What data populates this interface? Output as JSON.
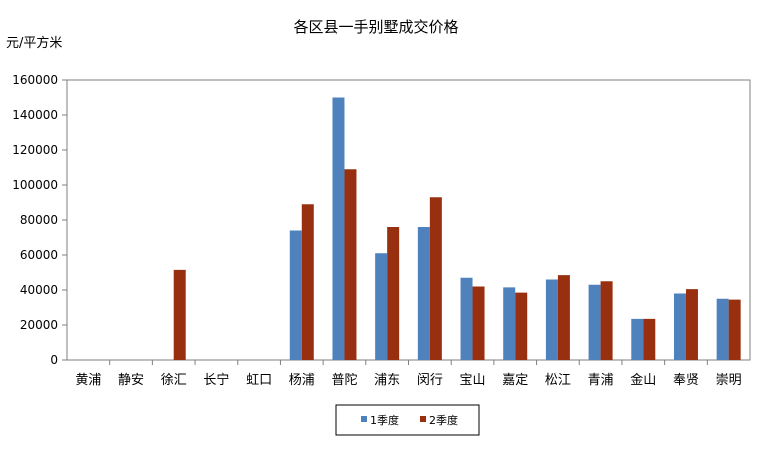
{
  "chart_data": {
    "type": "bar",
    "title": "各区县一手别墅成交价格",
    "ylabel": "元/平方米",
    "xlabel": "",
    "ylim": [
      0,
      160000
    ],
    "yticks": [
      0,
      20000,
      40000,
      60000,
      80000,
      100000,
      120000,
      140000,
      160000
    ],
    "grid": false,
    "legend_position": "bottom",
    "categories": [
      "黄浦",
      "静安",
      "徐汇",
      "长宁",
      "虹口",
      "杨浦",
      "普陀",
      "浦东",
      "闵行",
      "宝山",
      "嘉定",
      "松江",
      "青浦",
      "金山",
      "奉贤",
      "崇明"
    ],
    "series": [
      {
        "name": "1季度",
        "color": "#4F81BD",
        "values": [
          0,
          0,
          0,
          0,
          0,
          74000,
          150000,
          61000,
          76000,
          47000,
          41500,
          46000,
          43000,
          23500,
          38000,
          35000
        ]
      },
      {
        "name": "2季度",
        "color": "#983010",
        "values": [
          0,
          0,
          51500,
          0,
          0,
          89000,
          109000,
          76000,
          93000,
          42000,
          38500,
          48500,
          45000,
          23500,
          40500,
          34500
        ]
      }
    ]
  }
}
